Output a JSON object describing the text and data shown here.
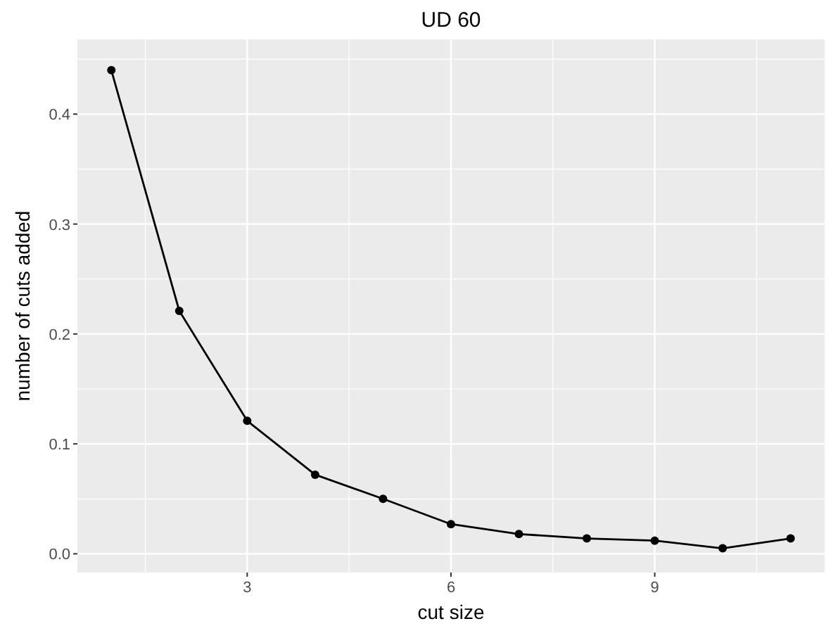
{
  "chart_data": {
    "type": "line",
    "title": "UD 60",
    "xlabel": "cut size",
    "ylabel": "number of cuts added",
    "x": [
      1,
      2,
      3,
      4,
      5,
      6,
      7,
      8,
      9,
      10,
      11
    ],
    "series": [
      {
        "color": "#000000",
        "values": [
          0.44,
          0.221,
          0.121,
          0.072,
          0.05,
          0.027,
          0.018,
          0.014,
          0.012,
          0.005,
          0.014
        ]
      }
    ],
    "xlim": [
      0.5,
      11.5
    ],
    "xticks": [
      3,
      6,
      9
    ],
    "ylim": [
      -0.017,
      0.468
    ],
    "yticks": [
      {
        "value": 0,
        "label": "0.0"
      },
      0.1,
      0.2,
      0.3,
      0.4
    ],
    "grid": true,
    "marker": "circle",
    "line_style": "solid"
  }
}
